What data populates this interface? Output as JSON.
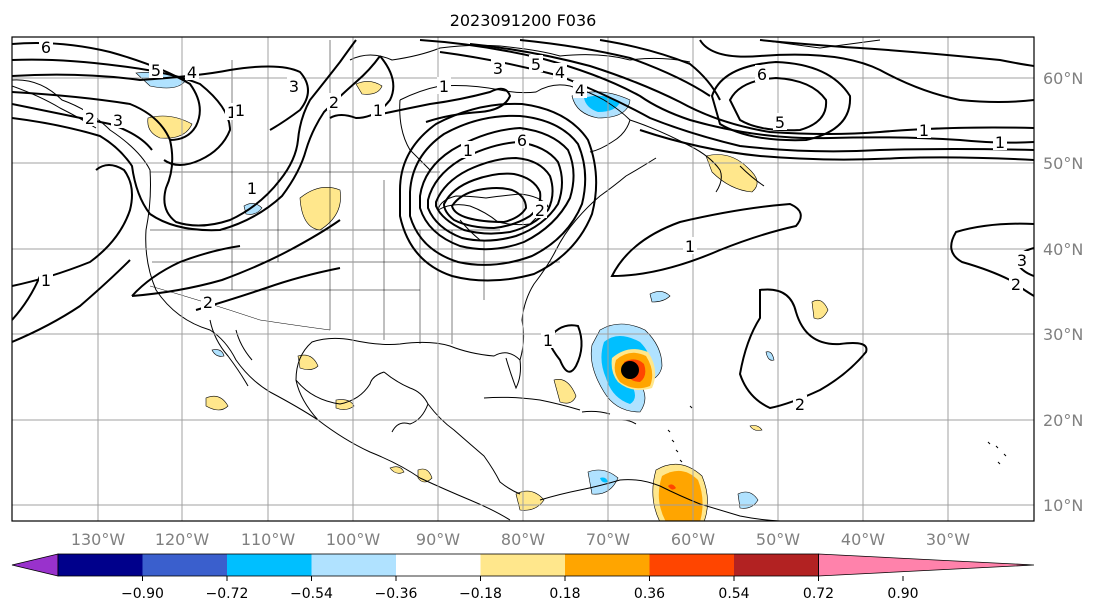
{
  "title": "2023091200 F036",
  "map": {
    "lon_labels": [
      "130°W",
      "120°W",
      "110°W",
      "100°W",
      "90°W",
      "80°W",
      "70°W",
      "60°W",
      "50°W",
      "40°W",
      "30°W"
    ],
    "lat_labels": [
      "60°N",
      "50°N",
      "40°N",
      "30°N",
      "20°N",
      "10°N"
    ],
    "contour_labels": [
      "6",
      "5",
      "4",
      "3",
      "2",
      "1",
      "1",
      "2",
      "3",
      "1",
      "4",
      "3",
      "5",
      "4",
      "6",
      "6",
      "5",
      "1",
      "1",
      "2",
      "1",
      "1",
      "2",
      "1",
      "1",
      "2",
      "1",
      "2",
      "3",
      "1"
    ]
  },
  "colorbar": {
    "ticks": [
      "−0.90",
      "−0.72",
      "−0.54",
      "−0.36",
      "−0.18",
      "0.18",
      "0.36",
      "0.54",
      "0.72",
      "0.90"
    ],
    "colors": [
      "#9932cc",
      "#00008b",
      "#3a5fcd",
      "#00bfff",
      "#b0e2ff",
      "#ffffff",
      "#ffe78c",
      "#ffa500",
      "#ff4500",
      "#b22222",
      "#ff82ab"
    ]
  },
  "colors": {
    "gridline": "#a0a0a0",
    "axis_label": "#808080",
    "contour": "#000000"
  },
  "storm_marker": "black-dot"
}
